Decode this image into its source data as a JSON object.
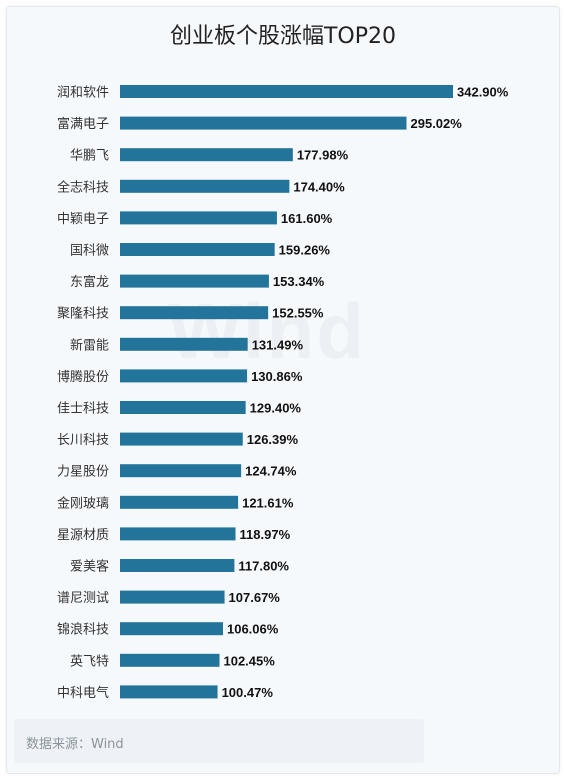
{
  "title": "创业板个股涨幅TOP20",
  "watermark": "Wind",
  "source": "数据来源：Wind",
  "colors": {
    "bar": "#23749b",
    "background": "#f6f9fc"
  },
  "chart_data": {
    "type": "bar",
    "orientation": "horizontal",
    "title": "创业板个股涨幅TOP20",
    "categories": [
      "润和软件",
      "富满电子",
      "华鹏飞",
      "全志科技",
      "中颖电子",
      "国科微",
      "东富龙",
      "聚隆科技",
      "新雷能",
      "博腾股份",
      "佳士科技",
      "长川科技",
      "力星股份",
      "金刚玻璃",
      "星源材质",
      "爱美客",
      "谱尼测试",
      "锦浪科技",
      "英飞特",
      "中科电气"
    ],
    "values": [
      342.9,
      295.02,
      177.98,
      174.4,
      161.6,
      159.26,
      153.34,
      152.55,
      131.49,
      130.86,
      129.4,
      126.39,
      124.74,
      121.61,
      118.97,
      117.8,
      107.67,
      106.06,
      102.45,
      100.47
    ],
    "value_labels": [
      "342.90%",
      "295.02%",
      "177.98%",
      "174.40%",
      "161.60%",
      "159.26%",
      "153.34%",
      "152.55%",
      "131.49%",
      "130.86%",
      "129.40%",
      "126.39%",
      "124.74%",
      "121.61%",
      "118.97%",
      "117.80%",
      "107.67%",
      "106.06%",
      "102.45%",
      "100.47%"
    ],
    "unit": "%",
    "grid": false,
    "legend": "none"
  }
}
